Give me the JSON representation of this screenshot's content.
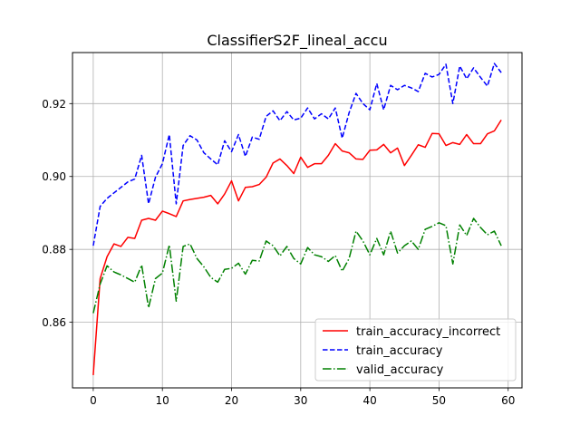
{
  "chart_data": {
    "type": "line",
    "title": "ClassifierS2F_lineal_accu",
    "xlabel": "",
    "ylabel": "",
    "xlim": [
      -3,
      62
    ],
    "ylim": [
      0.842,
      0.934
    ],
    "xticks": [
      0,
      10,
      20,
      30,
      40,
      50,
      60
    ],
    "xtick_labels": [
      "0",
      "10",
      "20",
      "30",
      "40",
      "50",
      "60"
    ],
    "yticks": [
      0.86,
      0.88,
      0.9,
      0.92
    ],
    "ytick_labels": [
      "0.86",
      "0.88",
      "0.90",
      "0.92"
    ],
    "grid": true,
    "legend_position": "lower-right",
    "x": [
      0,
      1,
      2,
      3,
      4,
      5,
      6,
      7,
      8,
      9,
      10,
      11,
      12,
      13,
      14,
      15,
      16,
      17,
      18,
      19,
      20,
      21,
      22,
      23,
      24,
      25,
      26,
      27,
      28,
      29,
      30,
      31,
      32,
      33,
      34,
      35,
      36,
      37,
      38,
      39,
      40,
      41,
      42,
      43,
      44,
      45,
      46,
      47,
      48,
      49,
      50,
      51,
      52,
      53,
      54,
      55,
      56,
      57,
      58,
      59
    ],
    "series": [
      {
        "name": "train_accuracy_incorrect",
        "color": "#ff0000",
        "linestyle": "solid",
        "values": [
          0.8455,
          0.872,
          0.878,
          0.8815,
          0.8808,
          0.8833,
          0.883,
          0.888,
          0.8885,
          0.888,
          0.8905,
          0.8898,
          0.889,
          0.8933,
          0.8937,
          0.894,
          0.8943,
          0.8948,
          0.8925,
          0.8952,
          0.8988,
          0.8933,
          0.897,
          0.8972,
          0.8978,
          0.8998,
          0.9037,
          0.9048,
          0.903,
          0.9008,
          0.9053,
          0.9025,
          0.9035,
          0.9035,
          0.9058,
          0.909,
          0.907,
          0.9065,
          0.9048,
          0.9047,
          0.9072,
          0.9073,
          0.9088,
          0.9065,
          0.9078,
          0.903,
          0.9058,
          0.9087,
          0.908,
          0.9118,
          0.9117,
          0.9085,
          0.9093,
          0.9088,
          0.9115,
          0.909,
          0.909,
          0.9117,
          0.9125,
          0.9155
        ]
      },
      {
        "name": "train_accuracy",
        "color": "#0000ff",
        "linestyle": "dashed",
        "values": [
          0.881,
          0.8918,
          0.894,
          0.8955,
          0.897,
          0.8985,
          0.8993,
          0.9058,
          0.8925,
          0.8998,
          0.9035,
          0.9115,
          0.8925,
          0.9085,
          0.9112,
          0.91,
          0.9065,
          0.9048,
          0.9032,
          0.9098,
          0.9068,
          0.9115,
          0.9055,
          0.9108,
          0.9102,
          0.9165,
          0.918,
          0.9153,
          0.9178,
          0.9155,
          0.916,
          0.9188,
          0.9158,
          0.9172,
          0.9158,
          0.9188,
          0.9105,
          0.9175,
          0.9228,
          0.92,
          0.9183,
          0.9255,
          0.9183,
          0.925,
          0.9238,
          0.925,
          0.9243,
          0.9233,
          0.9283,
          0.9273,
          0.928,
          0.9308,
          0.92,
          0.9303,
          0.9268,
          0.9298,
          0.9272,
          0.9248,
          0.931,
          0.9285
        ]
      },
      {
        "name": "valid_accuracy",
        "color": "#008000",
        "linestyle": "dashdot",
        "values": [
          0.8625,
          0.8705,
          0.8755,
          0.8738,
          0.873,
          0.872,
          0.871,
          0.8757,
          0.864,
          0.872,
          0.8735,
          0.8812,
          0.8658,
          0.8808,
          0.8815,
          0.8775,
          0.8752,
          0.8723,
          0.871,
          0.8745,
          0.8748,
          0.8762,
          0.8732,
          0.877,
          0.8768,
          0.8823,
          0.881,
          0.8782,
          0.8808,
          0.8775,
          0.876,
          0.8805,
          0.8785,
          0.878,
          0.8767,
          0.8783,
          0.874,
          0.8775,
          0.885,
          0.8823,
          0.8785,
          0.883,
          0.8785,
          0.885,
          0.879,
          0.881,
          0.8823,
          0.88,
          0.8855,
          0.8863,
          0.8873,
          0.8865,
          0.876,
          0.8867,
          0.8838,
          0.8885,
          0.886,
          0.884,
          0.885,
          0.881
        ]
      }
    ]
  }
}
